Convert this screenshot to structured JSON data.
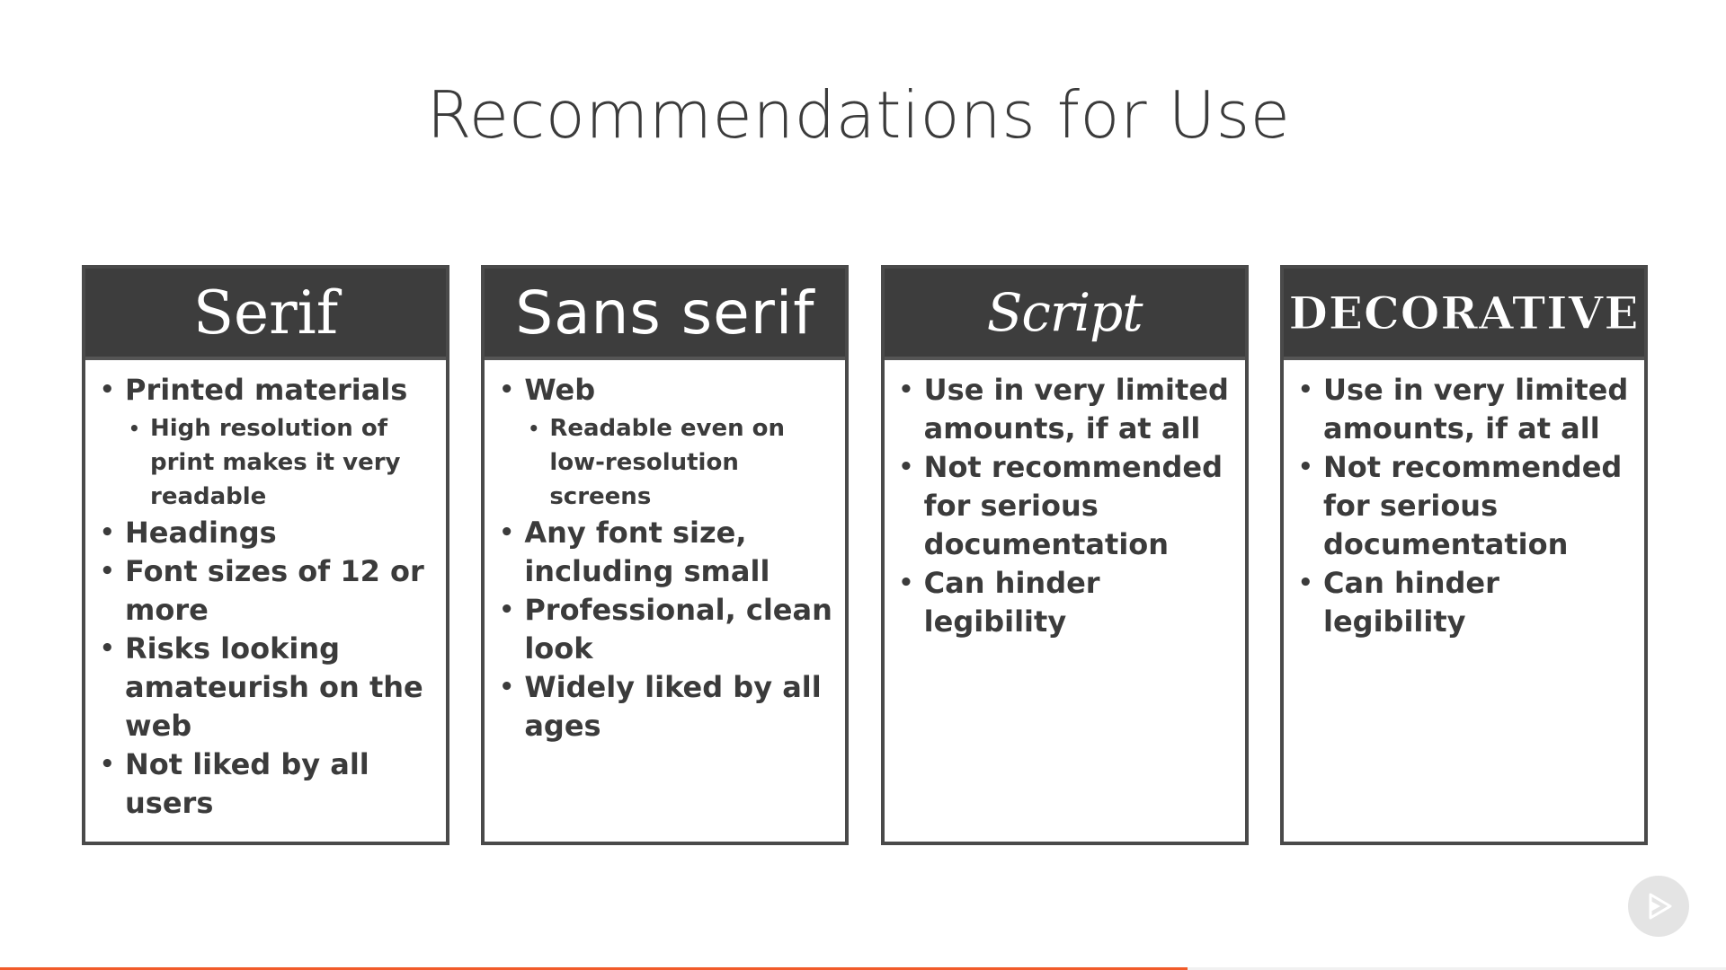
{
  "slide": {
    "title": "Recommendations for Use"
  },
  "columns": [
    {
      "header": "Serif",
      "bullets": [
        {
          "text": "Printed materials",
          "subbullets": [
            "High resolution of print makes it very readable"
          ]
        },
        {
          "text": "Headings"
        },
        {
          "text": "Font sizes of 12 or more"
        },
        {
          "text": "Risks looking amateurish on the web"
        },
        {
          "text": "Not liked by all users"
        }
      ]
    },
    {
      "header": "Sans serif",
      "bullets": [
        {
          "text": "Web",
          "subbullets": [
            "Readable even on low-resolution screens"
          ]
        },
        {
          "text": "Any font size, including small"
        },
        {
          "text": "Professional, clean look"
        },
        {
          "text": "Widely liked by all ages"
        }
      ]
    },
    {
      "header": "Script",
      "bullets": [
        {
          "text": "Use in very limited amounts, if at all"
        },
        {
          "text": "Not recommended for serious documentation"
        },
        {
          "text": "Can hinder legibility"
        }
      ]
    },
    {
      "header": "DECORATIVE",
      "bullets": [
        {
          "text": "Use in very limited amounts, if at all"
        },
        {
          "text": "Not recommended for serious documentation"
        },
        {
          "text": "Can hinder legibility"
        }
      ]
    }
  ],
  "player": {
    "play_icon": "play-icon",
    "progress_fraction": 0.688,
    "colors": {
      "progress": "#f15b2a",
      "header_background": "#3d3d3d"
    }
  }
}
